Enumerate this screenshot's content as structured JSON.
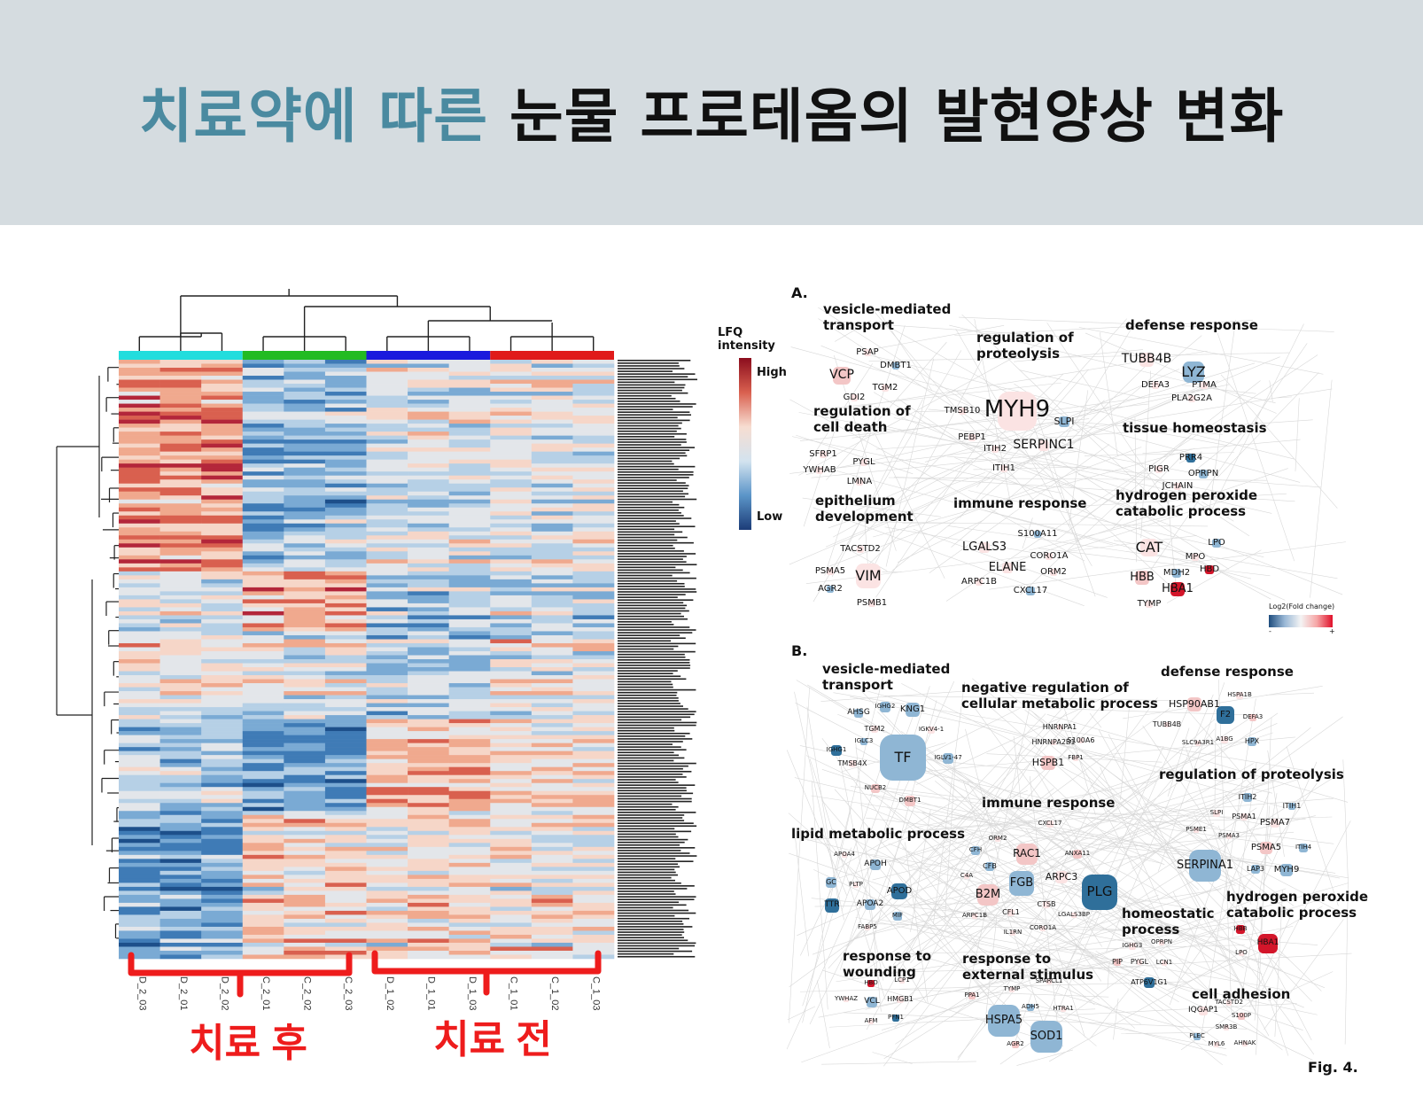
{
  "title": {
    "highlight": "치료약에 따른",
    "rest": "눈물 프로테옴의 발현양상 변화"
  },
  "heatmap": {
    "legend_title": "LFQ\nintensity",
    "legend_high": "High",
    "legend_low": "Low",
    "columns": [
      "D_2_03",
      "D_2_01",
      "D_2_02",
      "C_2_01",
      "C_2_02",
      "C_2_03",
      "D_1_02",
      "D_1_01",
      "D_1_03",
      "C_1_01",
      "C_1_02",
      "C_1_03"
    ],
    "group_colors": [
      "#22dddd",
      "#22bb22",
      "#1a1add",
      "#e01a1a"
    ],
    "after_label": "치료 후",
    "before_label": "치료 전",
    "bracket_color": "#ee1c1c"
  },
  "network_a": {
    "panel_label": "A.",
    "groups": [
      "vesicle-mediated\ntransport",
      "regulation of\nproteolysis",
      "defense response",
      "regulation of\ncell death",
      "tissue homeostasis",
      "epithelium\ndevelopment",
      "immune response",
      "hydrogen peroxide\ncatabolic process"
    ],
    "genes": [
      "PSAP",
      "DMBT1",
      "VCP",
      "TGM2",
      "GDI2",
      "TMSB10",
      "MYH9",
      "SLPI",
      "PEBP1",
      "ITIH2",
      "SERPINC1",
      "ITIH1",
      "TUBB4B",
      "LYZ",
      "DEFA3",
      "PTMA",
      "PLA2G2A",
      "SFRP1",
      "YWHAB",
      "PYGL",
      "LMNA",
      "PRR4",
      "PIGR",
      "OPRPN",
      "JCHAIN",
      "TACSTD2",
      "PSMA5",
      "VIM",
      "AGR2",
      "PSMB1",
      "S100A11",
      "LGALS3",
      "CORO1A",
      "ELANE",
      "ORM2",
      "ARPC1B",
      "CXCL17",
      "CAT",
      "LPO",
      "MPO",
      "HBB",
      "MDH2",
      "HBD",
      "HBA1",
      "TYMP"
    ],
    "legend_title": "Log2(Fold change)",
    "legend_minus": "-",
    "legend_plus": "+"
  },
  "network_b": {
    "panel_label": "B.",
    "groups": [
      "vesicle-mediated\ntransport",
      "negative regulation of\ncellular metabolic process",
      "defense response",
      "regulation of  proteolysis",
      "immune response",
      "lipid metabolic process",
      "hydrogen peroxide\ncatabolic process",
      "homeostatic\nprocess",
      "response to\nwounding",
      "response to\nexternal stimulus",
      "cell adhesion"
    ],
    "genes": [
      "AHSG",
      "IGHG2",
      "KNG1",
      "TGM2",
      "IGKV4-1",
      "IGLC3",
      "IGHG1",
      "TF",
      "IGLV1-47",
      "TMSB4X",
      "NUCB2",
      "DMBT1",
      "HNRNPA1",
      "HNRNPA2B1",
      "S100A6",
      "HSPB1",
      "FBP1",
      "HSP90AB1",
      "HSPA1B",
      "F2",
      "DEFA3",
      "TUBB4B",
      "A1BG",
      "HPX",
      "SLC9A3R1",
      "ITIH2",
      "ITIH1",
      "SLPI",
      "PSMA1",
      "PSME1",
      "PSMA7",
      "PSMA3",
      "PSMA5",
      "ITIH4",
      "SERPINA1",
      "LAP3",
      "MYH9",
      "CXCL17",
      "ORM2",
      "CFH",
      "RAC1",
      "ANXA11",
      "CFB",
      "C4A",
      "ARPC3",
      "FGB",
      "PLG",
      "B2M",
      "CTSB",
      "CFL1",
      "ARPC1B",
      "LGALS3BP",
      "IL1RN",
      "CORO1A",
      "APOA4",
      "APOH",
      "GC",
      "PLTP",
      "APOD",
      "TTR",
      "APOA2",
      "MIF",
      "FABP5",
      "HBB",
      "HBA1",
      "LPO",
      "IGHG3",
      "OPRPN",
      "PIP",
      "PYGL",
      "LCN1",
      "ATP6V1G1",
      "HBD",
      "LCP1",
      "YWHAZ",
      "VCL",
      "HMGB1",
      "AFM",
      "PFN1",
      "PPA1",
      "TYMP",
      "SPARCL1",
      "ADH5",
      "HTRA1",
      "HSPA5",
      "SOD1",
      "AGR2",
      "IQGAP1",
      "TACSTD2",
      "S100P",
      "SMR3B",
      "PLEC",
      "MYL6",
      "AHNAK"
    ]
  },
  "fig_label": "Fig. 4."
}
